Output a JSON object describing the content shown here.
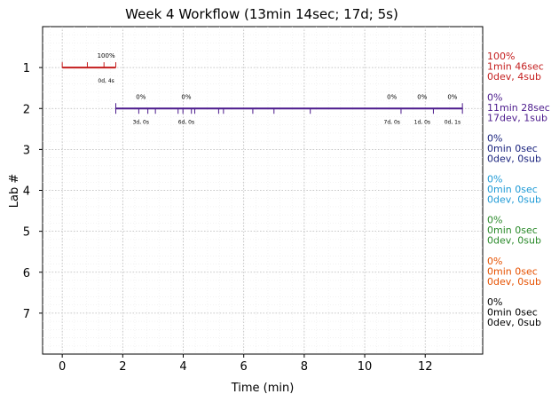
{
  "chart_data": {
    "type": "timeline",
    "title": "Week 4 Workflow (13min 14sec; 17d; 5s)",
    "xlabel": "Time (min)",
    "ylabel": "Lab #",
    "xlim": [
      -0.65,
      13.9
    ],
    "ylim": [
      8.0,
      0.0
    ],
    "xticks": [
      0,
      2,
      4,
      6,
      8,
      10,
      12
    ],
    "yticks": [
      1,
      2,
      3,
      4,
      5,
      6,
      7
    ],
    "grid": true,
    "labs": [
      {
        "lab": 1,
        "color": "#c41e1e",
        "start": 0.0,
        "end": 1.77,
        "events": [
          0.0,
          0.83,
          1.38,
          1.77
        ],
        "annotations": [
          {
            "x": 1.45,
            "pct": "100%",
            "dur": "0d, 4s"
          }
        ],
        "summary": [
          "100%",
          "1min 46sec",
          "0dev, 4sub"
        ]
      },
      {
        "lab": 2,
        "color": "#4b1a8c",
        "start": 1.77,
        "end": 13.23,
        "events": [
          1.77,
          2.53,
          2.83,
          3.08,
          3.83,
          3.99,
          4.27,
          4.38,
          5.17,
          5.33,
          6.3,
          7.0,
          8.2,
          11.2,
          12.27,
          13.23
        ],
        "annotations": [
          {
            "x": 2.6,
            "pct": "0%",
            "dur": "3d, 0s"
          },
          {
            "x": 4.1,
            "pct": "0%",
            "dur": "6d, 0s"
          },
          {
            "x": 10.9,
            "pct": "0%",
            "dur": "7d, 0s"
          },
          {
            "x": 11.9,
            "pct": "0%",
            "dur": "1d, 0s"
          },
          {
            "x": 12.9,
            "pct": "0%",
            "dur": "0d, 1s"
          }
        ],
        "summary": [
          "0%",
          "11min 28sec",
          "17dev, 1sub"
        ]
      },
      {
        "lab": 3,
        "color": "#1a237e",
        "summary": [
          "0%",
          "0min 0sec",
          "0dev, 0sub"
        ]
      },
      {
        "lab": 4,
        "color": "#1e9ad6",
        "summary": [
          "0%",
          "0min 0sec",
          "0dev, 0sub"
        ]
      },
      {
        "lab": 5,
        "color": "#2a8a2a",
        "summary": [
          "0%",
          "0min 0sec",
          "0dev, 0sub"
        ]
      },
      {
        "lab": 6,
        "color": "#e65100",
        "summary": [
          "0%",
          "0min 0sec",
          "0dev, 0sub"
        ]
      },
      {
        "lab": 7,
        "color": "#000000",
        "summary": [
          "0%",
          "0min 0sec",
          "0dev, 0sub"
        ]
      }
    ]
  }
}
